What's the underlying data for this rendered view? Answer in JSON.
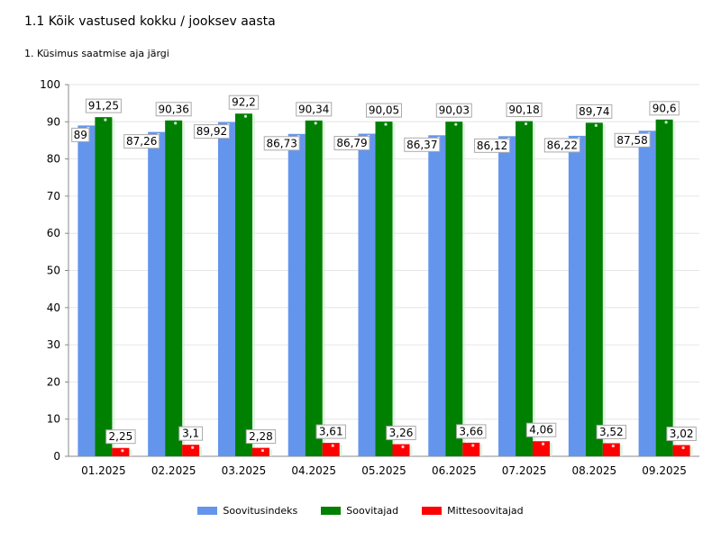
{
  "title": "1.1 Kõik vastused kokku / jooksev aasta",
  "subtitle": "1. Küsimus saatmise aja järgi",
  "chart_data": {
    "type": "bar",
    "categories": [
      "01.2025",
      "02.2025",
      "03.2025",
      "04.2025",
      "05.2025",
      "06.2025",
      "07.2025",
      "08.2025",
      "09.2025"
    ],
    "series": [
      {
        "name": "Soovitusindeks",
        "color": "#6495ED",
        "values": [
          89,
          87.26,
          89.92,
          86.73,
          86.79,
          86.37,
          86.12,
          86.22,
          87.58
        ],
        "labels": [
          "89",
          "87,26",
          "89,92",
          "86,73",
          "86,79",
          "86,37",
          "86,12",
          "86,22",
          "87,58"
        ]
      },
      {
        "name": "Soovitajad",
        "color": "#008000",
        "values": [
          91.25,
          90.36,
          92.2,
          90.34,
          90.05,
          90.03,
          90.18,
          89.74,
          90.6
        ],
        "labels": [
          "91,25",
          "90,36",
          "92,2",
          "90,34",
          "90,05",
          "90,03",
          "90,18",
          "89,74",
          "90,6"
        ]
      },
      {
        "name": "Mittesoovitajad",
        "color": "#FF0000",
        "values": [
          2.25,
          3.1,
          2.28,
          3.61,
          3.26,
          3.66,
          4.06,
          3.52,
          3.02
        ],
        "labels": [
          "2,25",
          "3,1",
          "2,28",
          "3,61",
          "3,26",
          "3,66",
          "4,06",
          "3,52",
          "3,02"
        ]
      }
    ],
    "ylim": [
      0,
      100
    ],
    "yticks": [
      0,
      10,
      20,
      30,
      40,
      50,
      60,
      70,
      80,
      90,
      100
    ],
    "grid": true,
    "legend_position": "bottom"
  }
}
